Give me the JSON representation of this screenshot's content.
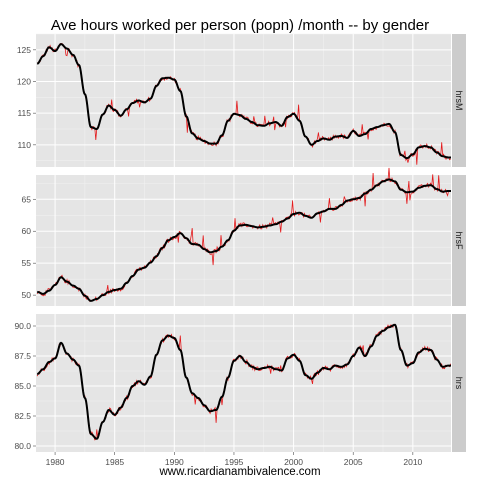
{
  "chart_data": {
    "type": "line",
    "title": "Ave hours worked per person (popn) /month -- by gender",
    "xlabel": "www.ricardianambivalence.com",
    "ylabel": "",
    "x_range": [
      1978.4,
      2013.2
    ],
    "x_ticks": [
      "1980",
      "1985",
      "1990",
      "1995",
      "2000",
      "2005",
      "2010"
    ],
    "grid": true,
    "legend": "none",
    "colors": {
      "panel_bg": "#e5e5e5",
      "grid": "#ffffff",
      "strip_bg": "#cccccc",
      "raw_line": "#e31a1c",
      "smooth_line": "#000000"
    },
    "series_styles": {
      "raw": "thin red line (monthly values)",
      "smooth": "thick black line (trend)"
    },
    "facets": [
      {
        "label": "hrsM",
        "ylim": [
          106.5,
          127.5
        ],
        "y_ticks": [
          "110",
          "115",
          "120",
          "125"
        ],
        "points": [
          [
            1978.5,
            122.8
          ],
          [
            1979.0,
            124.0
          ],
          [
            1979.5,
            125.4
          ],
          [
            1980.0,
            124.8
          ],
          [
            1980.5,
            125.9
          ],
          [
            1981.0,
            125.2
          ],
          [
            1981.5,
            124.2
          ],
          [
            1982.0,
            122.6
          ],
          [
            1982.5,
            118.0
          ],
          [
            1983.0,
            112.8
          ],
          [
            1983.5,
            112.5
          ],
          [
            1984.0,
            114.8
          ],
          [
            1984.5,
            116.2
          ],
          [
            1985.0,
            115.5
          ],
          [
            1985.5,
            114.6
          ],
          [
            1986.0,
            115.6
          ],
          [
            1986.5,
            116.6
          ],
          [
            1987.0,
            117.0
          ],
          [
            1987.5,
            116.7
          ],
          [
            1988.0,
            117.3
          ],
          [
            1988.5,
            119.3
          ],
          [
            1989.0,
            120.5
          ],
          [
            1989.5,
            120.6
          ],
          [
            1990.0,
            120.3
          ],
          [
            1990.5,
            118.5
          ],
          [
            1991.0,
            114.5
          ],
          [
            1991.5,
            111.8
          ],
          [
            1992.0,
            111.0
          ],
          [
            1992.5,
            110.6
          ],
          [
            1993.0,
            110.2
          ],
          [
            1993.5,
            110.2
          ],
          [
            1994.0,
            111.5
          ],
          [
            1994.5,
            113.8
          ],
          [
            1995.0,
            114.9
          ],
          [
            1995.5,
            114.7
          ],
          [
            1996.0,
            114.1
          ],
          [
            1996.5,
            113.6
          ],
          [
            1997.0,
            113.1
          ],
          [
            1997.5,
            113.0
          ],
          [
            1998.0,
            113.4
          ],
          [
            1998.5,
            113.6
          ],
          [
            1999.0,
            113.0
          ],
          [
            1999.5,
            114.4
          ],
          [
            2000.0,
            114.9
          ],
          [
            2000.5,
            113.8
          ],
          [
            2001.0,
            111.3
          ],
          [
            2001.5,
            110.0
          ],
          [
            2002.0,
            110.6
          ],
          [
            2002.5,
            111.0
          ],
          [
            2003.0,
            110.8
          ],
          [
            2003.5,
            111.3
          ],
          [
            2004.0,
            111.4
          ],
          [
            2004.5,
            111.1
          ],
          [
            2005.0,
            112.2
          ],
          [
            2005.5,
            111.4
          ],
          [
            2006.0,
            111.7
          ],
          [
            2006.5,
            112.5
          ],
          [
            2007.0,
            112.8
          ],
          [
            2007.5,
            113.1
          ],
          [
            2008.0,
            113.3
          ],
          [
            2008.5,
            112.0
          ],
          [
            2009.0,
            108.4
          ],
          [
            2009.5,
            107.9
          ],
          [
            2010.0,
            108.5
          ],
          [
            2010.5,
            109.6
          ],
          [
            2011.0,
            109.8
          ],
          [
            2011.5,
            109.6
          ],
          [
            2012.0,
            108.8
          ],
          [
            2012.5,
            108.2
          ],
          [
            2013.0,
            108.0
          ]
        ]
      },
      {
        "label": "hrsF",
        "ylim": [
          48.3,
          68.8
        ],
        "y_ticks": [
          "50",
          "55",
          "60",
          "65"
        ],
        "points": [
          [
            1978.5,
            50.5
          ],
          [
            1979.0,
            50.2
          ],
          [
            1979.5,
            50.7
          ],
          [
            1980.0,
            51.6
          ],
          [
            1980.5,
            52.8
          ],
          [
            1981.0,
            52.1
          ],
          [
            1981.5,
            51.5
          ],
          [
            1982.0,
            51.0
          ],
          [
            1982.5,
            49.9
          ],
          [
            1983.0,
            49.1
          ],
          [
            1983.5,
            49.4
          ],
          [
            1984.0,
            50.0
          ],
          [
            1984.5,
            50.5
          ],
          [
            1985.0,
            50.8
          ],
          [
            1985.5,
            51.0
          ],
          [
            1986.0,
            51.9
          ],
          [
            1986.5,
            53.0
          ],
          [
            1987.0,
            54.0
          ],
          [
            1987.5,
            54.3
          ],
          [
            1988.0,
            55.1
          ],
          [
            1988.5,
            56.1
          ],
          [
            1989.0,
            57.4
          ],
          [
            1989.5,
            58.6
          ],
          [
            1990.0,
            59.1
          ],
          [
            1990.5,
            59.7
          ],
          [
            1991.0,
            58.9
          ],
          [
            1991.5,
            58.0
          ],
          [
            1992.0,
            57.9
          ],
          [
            1992.5,
            57.2
          ],
          [
            1993.0,
            56.7
          ],
          [
            1993.5,
            56.9
          ],
          [
            1994.0,
            57.6
          ],
          [
            1994.5,
            58.6
          ],
          [
            1995.0,
            60.1
          ],
          [
            1995.5,
            60.9
          ],
          [
            1996.0,
            61.0
          ],
          [
            1996.5,
            60.8
          ],
          [
            1997.0,
            60.6
          ],
          [
            1997.5,
            60.7
          ],
          [
            1998.0,
            60.9
          ],
          [
            1998.5,
            61.1
          ],
          [
            1999.0,
            61.5
          ],
          [
            1999.5,
            62.0
          ],
          [
            2000.0,
            62.7
          ],
          [
            2000.5,
            62.9
          ],
          [
            2001.0,
            62.4
          ],
          [
            2001.5,
            62.1
          ],
          [
            2002.0,
            62.8
          ],
          [
            2002.5,
            63.1
          ],
          [
            2003.0,
            63.5
          ],
          [
            2003.5,
            63.5
          ],
          [
            2004.0,
            64.1
          ],
          [
            2004.5,
            64.8
          ],
          [
            2005.0,
            65.0
          ],
          [
            2005.5,
            65.2
          ],
          [
            2006.0,
            65.9
          ],
          [
            2006.5,
            66.5
          ],
          [
            2007.0,
            67.2
          ],
          [
            2007.5,
            67.8
          ],
          [
            2008.0,
            68.1
          ],
          [
            2008.5,
            67.8
          ],
          [
            2009.0,
            66.5
          ],
          [
            2009.5,
            66.1
          ],
          [
            2010.0,
            66.2
          ],
          [
            2010.5,
            66.8
          ],
          [
            2011.0,
            67.1
          ],
          [
            2011.5,
            67.2
          ],
          [
            2012.0,
            66.6
          ],
          [
            2012.5,
            66.2
          ],
          [
            2013.0,
            66.3
          ]
        ]
      },
      {
        "label": "hrs",
        "ylim": [
          79.5,
          91.0
        ],
        "y_ticks": [
          "80.0",
          "82.5",
          "85.0",
          "87.5",
          "90.0"
        ],
        "points": [
          [
            1978.5,
            86.0
          ],
          [
            1979.0,
            86.4
          ],
          [
            1979.5,
            87.0
          ],
          [
            1980.0,
            87.3
          ],
          [
            1980.5,
            88.6
          ],
          [
            1981.0,
            87.7
          ],
          [
            1981.5,
            87.2
          ],
          [
            1982.0,
            86.7
          ],
          [
            1982.5,
            84.0
          ],
          [
            1983.0,
            81.0
          ],
          [
            1983.5,
            80.6
          ],
          [
            1984.0,
            82.0
          ],
          [
            1984.5,
            83.0
          ],
          [
            1985.0,
            82.6
          ],
          [
            1985.5,
            83.2
          ],
          [
            1986.0,
            84.0
          ],
          [
            1986.5,
            85.0
          ],
          [
            1987.0,
            85.4
          ],
          [
            1987.5,
            85.1
          ],
          [
            1988.0,
            85.8
          ],
          [
            1988.5,
            87.6
          ],
          [
            1989.0,
            88.8
          ],
          [
            1989.5,
            89.2
          ],
          [
            1990.0,
            89.0
          ],
          [
            1990.5,
            88.0
          ],
          [
            1991.0,
            85.7
          ],
          [
            1991.5,
            84.4
          ],
          [
            1992.0,
            84.0
          ],
          [
            1992.5,
            83.4
          ],
          [
            1993.0,
            82.9
          ],
          [
            1993.5,
            83.0
          ],
          [
            1994.0,
            84.1
          ],
          [
            1994.5,
            85.7
          ],
          [
            1995.0,
            87.1
          ],
          [
            1995.5,
            87.5
          ],
          [
            1996.0,
            87.0
          ],
          [
            1996.5,
            86.6
          ],
          [
            1997.0,
            86.4
          ],
          [
            1997.5,
            86.5
          ],
          [
            1998.0,
            86.6
          ],
          [
            1998.5,
            86.4
          ],
          [
            1999.0,
            86.3
          ],
          [
            1999.5,
            87.3
          ],
          [
            2000.0,
            87.6
          ],
          [
            2000.5,
            87.1
          ],
          [
            2001.0,
            85.9
          ],
          [
            2001.5,
            85.6
          ],
          [
            2002.0,
            86.1
          ],
          [
            2002.5,
            86.5
          ],
          [
            2003.0,
            86.4
          ],
          [
            2003.5,
            86.7
          ],
          [
            2004.0,
            86.6
          ],
          [
            2004.5,
            86.8
          ],
          [
            2005.0,
            87.5
          ],
          [
            2005.5,
            88.2
          ],
          [
            2006.0,
            87.5
          ],
          [
            2006.5,
            88.3
          ],
          [
            2007.0,
            89.2
          ],
          [
            2007.5,
            89.6
          ],
          [
            2008.0,
            89.9
          ],
          [
            2008.5,
            90.1
          ],
          [
            2009.0,
            88.0
          ],
          [
            2009.5,
            86.7
          ],
          [
            2010.0,
            86.9
          ],
          [
            2010.5,
            87.8
          ],
          [
            2011.0,
            88.1
          ],
          [
            2011.5,
            88.0
          ],
          [
            2012.0,
            87.2
          ],
          [
            2012.5,
            86.6
          ],
          [
            2013.0,
            86.7
          ]
        ]
      }
    ]
  }
}
